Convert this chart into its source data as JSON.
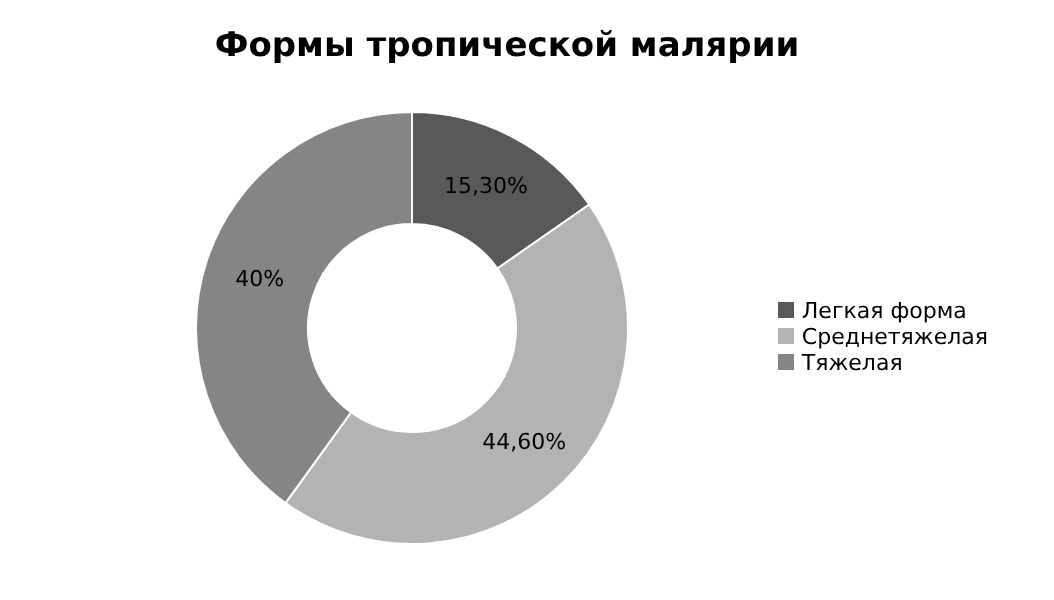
{
  "chart_data": {
    "type": "donut",
    "title": "Формы тропической малярии",
    "categories": [
      "Легкая форма",
      "Среднетяжелая",
      "Тяжелая"
    ],
    "values": [
      15.3,
      44.6,
      40
    ],
    "value_labels": [
      "15,30%",
      "44,60%",
      "40%"
    ],
    "colors": [
      "#595959",
      "#b3b3b3",
      "#858585"
    ],
    "legend": "right"
  }
}
